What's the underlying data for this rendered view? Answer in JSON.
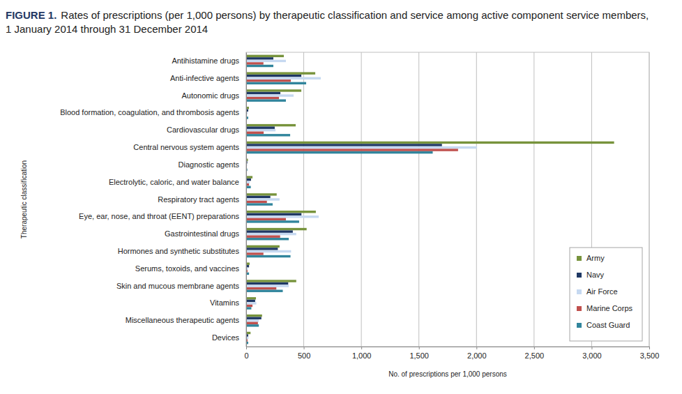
{
  "chart_data": {
    "type": "bar",
    "orientation": "horizontal",
    "title": "FIGURE 1. Rates of prescriptions (per 1,000 persons) by therapeutic classification and service among active component service members,",
    "subtitle": "1 January 2014 through 31 December 2014",
    "x_label": "No. of prescriptions per 1,000 persons",
    "y_label": "Therapeutic classification",
    "categories": [
      "Antihistamine drugs",
      "Anti-infective agents",
      "Autonomic drugs",
      "Blood formation, coagulation, and thrombosis agents",
      "Cardiovascular drugs",
      "Central nervous system agents",
      "Diagnostic agents",
      "Electrolytic, caloric, and water balance",
      "Respiratory tract agents",
      "Eye, ear, nose, and throat (EENT) preparations",
      "Gastrointestinal drugs",
      "Hormones and synthetic substitutes",
      "Serums, toxoids, and vaccines",
      "Skin and mucous membrane agents",
      "Vitamins",
      "Miscellaneous therapeutic agents",
      "Devices"
    ],
    "series": [
      {
        "name": "Army",
        "color": "#77933c",
        "values": [
          327,
          600,
          479,
          24,
          430,
          3195,
          15,
          55,
          265,
          605,
          525,
          290,
          30,
          435,
          85,
          138,
          38
        ]
      },
      {
        "name": "Navy",
        "color": "#1f3864",
        "values": [
          236,
          479,
          297,
          18,
          248,
          1700,
          10,
          42,
          210,
          480,
          405,
          275,
          25,
          365,
          78,
          132,
          18
        ]
      },
      {
        "name": "Air Force",
        "color": "#c6d9f1",
        "values": [
          345,
          648,
          412,
          12,
          255,
          2005,
          8,
          30,
          290,
          630,
          435,
          390,
          15,
          370,
          88,
          110,
          20
        ]
      },
      {
        "name": "Marine Corps",
        "color": "#c0504d",
        "values": [
          150,
          388,
          285,
          6,
          152,
          1840,
          5,
          25,
          180,
          345,
          295,
          150,
          12,
          262,
          55,
          102,
          12
        ]
      },
      {
        "name": "Coast Guard",
        "color": "#31859c",
        "values": [
          236,
          521,
          345,
          18,
          382,
          1620,
          10,
          40,
          230,
          460,
          370,
          385,
          25,
          318,
          45,
          110,
          18
        ]
      }
    ],
    "xlim": [
      0,
      3500
    ],
    "xticks": [
      0,
      500,
      {
        "value": 1000,
        "label": "1,000"
      },
      {
        "value": 1500,
        "label": "1,500"
      },
      {
        "value": 2000,
        "label": "2,000"
      },
      {
        "value": 2500,
        "label": "2,500"
      },
      {
        "value": 3000,
        "label": "3,000"
      },
      {
        "value": 3500,
        "label": "3,500"
      }
    ],
    "grid": true,
    "legend": "lower right"
  }
}
